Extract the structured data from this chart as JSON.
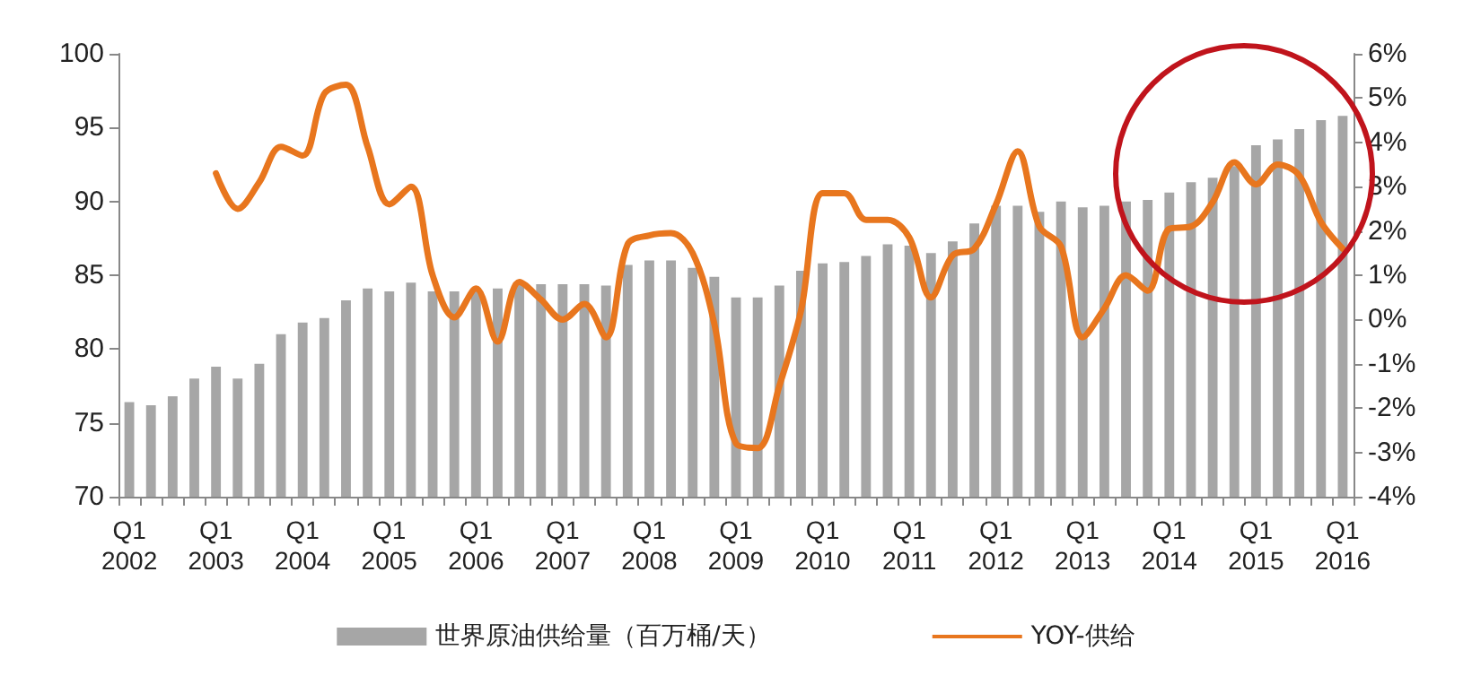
{
  "chart_data": {
    "type": "bar",
    "categories": [
      "Q1\n2002",
      null,
      null,
      null,
      "Q1\n2003",
      null,
      null,
      null,
      "Q1\n2004",
      null,
      null,
      null,
      "Q1\n2005",
      null,
      null,
      null,
      "Q1\n2006",
      null,
      null,
      null,
      "Q1\n2007",
      null,
      null,
      null,
      "Q1\n2008",
      null,
      null,
      null,
      "Q1\n2009",
      null,
      null,
      null,
      "Q1\n2010",
      null,
      null,
      null,
      "Q1\n2011",
      null,
      null,
      null,
      "Q1\n2012",
      null,
      null,
      null,
      "Q1\n2013",
      null,
      null,
      null,
      "Q1\n2014",
      null,
      null,
      null,
      "Q1\n2015",
      null,
      null,
      null,
      "Q1\n2016"
    ],
    "series": [
      {
        "name": "世界原油供给量（百万桶/天）",
        "color": "#a6a6a6",
        "values": [
          76.4,
          76.2,
          76.8,
          78.0,
          78.8,
          78.0,
          79.0,
          81.0,
          81.8,
          82.1,
          83.3,
          84.1,
          83.9,
          84.5,
          83.9,
          83.9,
          83.9,
          84.1,
          84.4,
          84.4,
          84.4,
          84.4,
          84.3,
          85.7,
          86.0,
          86.0,
          85.5,
          84.9,
          83.5,
          83.5,
          84.3,
          85.3,
          85.8,
          85.9,
          86.3,
          87.1,
          87.0,
          86.5,
          87.3,
          88.5,
          89.7,
          89.7,
          89.3,
          90.0,
          89.6,
          89.7,
          90.0,
          90.1,
          90.6,
          91.3,
          91.6,
          92.4,
          93.8,
          94.2,
          94.9,
          95.5,
          95.8
        ]
      },
      {
        "name": "YOY-供给",
        "type": "line",
        "axis": "y2",
        "color": "#e8761e",
        "values": [
          null,
          null,
          null,
          null,
          3.3,
          2.5,
          3.1,
          3.9,
          3.7,
          5.1,
          5.3,
          3.9,
          2.6,
          3.0,
          1.0,
          0.05,
          0.7,
          -0.5,
          0.85,
          0.45,
          0.0,
          0.35,
          -0.4,
          1.7,
          1.9,
          1.95,
          1.5,
          -0.1,
          -2.8,
          -2.9,
          -1.5,
          0.2,
          2.85,
          2.85,
          2.25,
          2.25,
          1.85,
          0.5,
          1.45,
          1.6,
          2.6,
          3.8,
          2.1,
          1.65,
          -0.4,
          0.25,
          1.0,
          0.65,
          2.05,
          2.1,
          2.65,
          3.55,
          3.05,
          3.5,
          3.25,
          2.2,
          1.6
        ]
      }
    ],
    "ylim": [
      70,
      100
    ],
    "yticks": [
      70,
      75,
      80,
      85,
      90,
      95,
      100
    ],
    "y2lim": [
      -4,
      6
    ],
    "y2ticks": [
      {
        "value": -4,
        "label": "-4%"
      },
      {
        "value": -3,
        "label": "-3%"
      },
      {
        "value": -2,
        "label": "-2%"
      },
      {
        "value": -1,
        "label": "-1%"
      },
      {
        "value": 0,
        "label": "0%"
      },
      {
        "value": 1,
        "label": "1%"
      },
      {
        "value": 2,
        "label": "2%"
      },
      {
        "value": 3,
        "label": "3%"
      },
      {
        "value": 4,
        "label": "4%"
      },
      {
        "value": 5,
        "label": "5%"
      },
      {
        "value": 6,
        "label": "6%"
      }
    ],
    "grid": false,
    "legend": "bottom",
    "marker": "none",
    "line_style": "solid"
  }
}
